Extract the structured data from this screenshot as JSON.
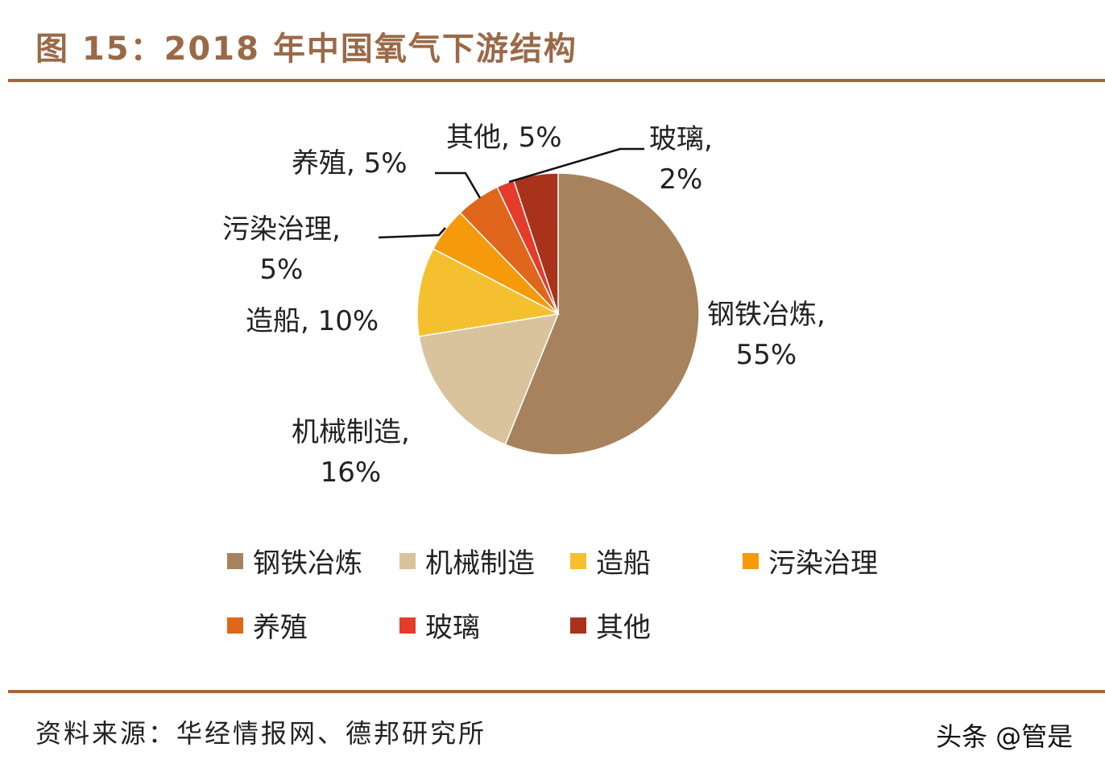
{
  "title": "图 15：2018 年中国氧气下游结构",
  "source": "资料来源：华经情报网、德邦研究所",
  "watermark": "头条 @管是",
  "chart_data": {
    "type": "pie",
    "title": "",
    "start": "top",
    "direction": "clockwise",
    "slices": [
      {
        "name": "钢铁冶炼",
        "value": 55,
        "label": "钢铁冶炼,",
        "pct": "55%",
        "color": "#A6835D"
      },
      {
        "name": "机械制造",
        "value": 16,
        "label": "机械制造,",
        "pct": "16%",
        "color": "#D8C39D"
      },
      {
        "name": "造船",
        "value": 10,
        "label": "造船, 10%",
        "pct": "",
        "color": "#F5C030"
      },
      {
        "name": "污染治理",
        "value": 5,
        "label": "污染治理,",
        "pct": "5%",
        "color": "#F59A0A"
      },
      {
        "name": "养殖",
        "value": 5,
        "label": "养殖, 5%",
        "pct": "",
        "color": "#E0661B"
      },
      {
        "name": "玻璃",
        "value": 2,
        "label": "玻璃,",
        "pct": "2%",
        "color": "#E53B2A"
      },
      {
        "name": "其他",
        "value": 5,
        "label": "其他, 5%",
        "pct": "",
        "color": "#A8321A"
      }
    ],
    "legend_position": "bottom"
  }
}
